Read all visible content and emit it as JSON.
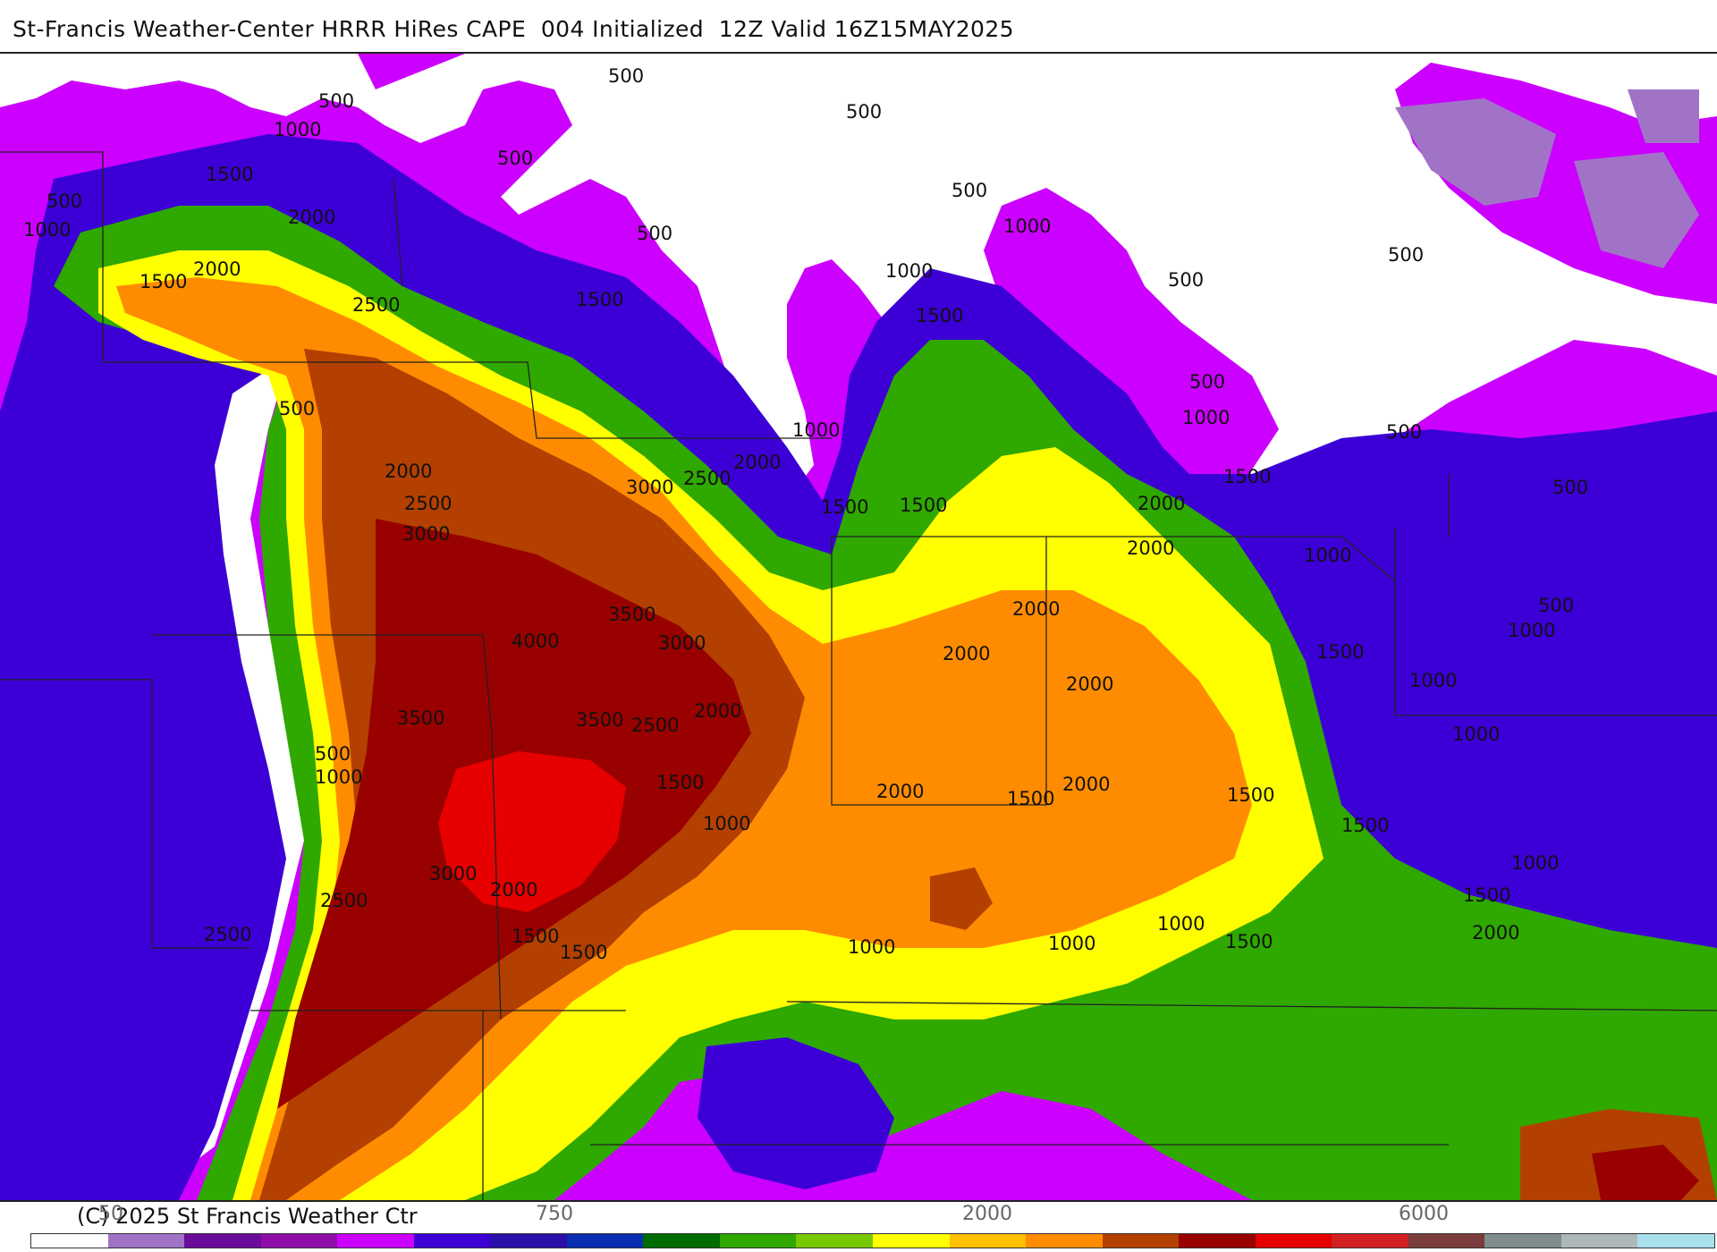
{
  "header": {
    "title": "St-Francis Weather-Center HRRR HiRes CAPE  004 Initialized  12Z Valid 16Z15MAY2025"
  },
  "footer": {
    "copyright": "(C) 2025 St Francis Weather Ctr"
  },
  "colorbar": {
    "tick_labels": [
      {
        "text": "50"
      },
      {
        "text": "750"
      },
      {
        "text": "2000"
      },
      {
        "text": "6000"
      }
    ],
    "colors": [
      "#ffffff",
      "#a173c7",
      "#6b0c9a",
      "#8d0fa8",
      "#cc00ff",
      "#3c00d6",
      "#2a0fa8",
      "#0a2eb0",
      "#006b00",
      "#2fa800",
      "#78c800",
      "#ffff00",
      "#ffc000",
      "#ff8c00",
      "#b34000",
      "#990000",
      "#e60000",
      "#d21f1f",
      "#7a3c3c",
      "#7f8c8c",
      "#aeb8b8",
      "#a8e0ec"
    ]
  },
  "map": {
    "variable": "CAPE",
    "contour_labels": [
      {
        "text": "500"
      },
      {
        "text": "500"
      },
      {
        "text": "1000"
      },
      {
        "text": "500"
      },
      {
        "text": "500"
      },
      {
        "text": "500"
      },
      {
        "text": "1500"
      },
      {
        "text": "500"
      },
      {
        "text": "1000"
      },
      {
        "text": "2000"
      },
      {
        "text": "1500"
      },
      {
        "text": "2000"
      },
      {
        "text": "500"
      },
      {
        "text": "1000"
      },
      {
        "text": "500"
      },
      {
        "text": "500"
      },
      {
        "text": "1500"
      },
      {
        "text": "2500"
      },
      {
        "text": "1000"
      },
      {
        "text": "1500"
      },
      {
        "text": "500"
      },
      {
        "text": "500"
      },
      {
        "text": "500"
      },
      {
        "text": "1000"
      },
      {
        "text": "1000"
      },
      {
        "text": "2000"
      },
      {
        "text": "2000"
      },
      {
        "text": "2500"
      },
      {
        "text": "3000"
      },
      {
        "text": "2500"
      },
      {
        "text": "1500"
      },
      {
        "text": "1500"
      },
      {
        "text": "2000"
      },
      {
        "text": "1500"
      },
      {
        "text": "500"
      },
      {
        "text": "3000"
      },
      {
        "text": "2000"
      },
      {
        "text": "1000"
      },
      {
        "text": "3500"
      },
      {
        "text": "4000"
      },
      {
        "text": "3000"
      },
      {
        "text": "2000"
      },
      {
        "text": "500"
      },
      {
        "text": "1000"
      },
      {
        "text": "2000"
      },
      {
        "text": "1500"
      },
      {
        "text": "2000"
      },
      {
        "text": "1000"
      },
      {
        "text": "3500"
      },
      {
        "text": "3500"
      },
      {
        "text": "2500"
      },
      {
        "text": "2000"
      },
      {
        "text": "500"
      },
      {
        "text": "1000"
      },
      {
        "text": "1000"
      },
      {
        "text": "1500"
      },
      {
        "text": "2000"
      },
      {
        "text": "2000"
      },
      {
        "text": "1500"
      },
      {
        "text": "1500"
      },
      {
        "text": "1000"
      },
      {
        "text": "1500"
      },
      {
        "text": "3000"
      },
      {
        "text": "2000"
      },
      {
        "text": "2500"
      },
      {
        "text": "2500"
      },
      {
        "text": "1500"
      },
      {
        "text": "1500"
      },
      {
        "text": "1000"
      },
      {
        "text": "1000"
      },
      {
        "text": "1000"
      },
      {
        "text": "1500"
      },
      {
        "text": "1000"
      },
      {
        "text": "1500"
      },
      {
        "text": "2000"
      }
    ]
  }
}
